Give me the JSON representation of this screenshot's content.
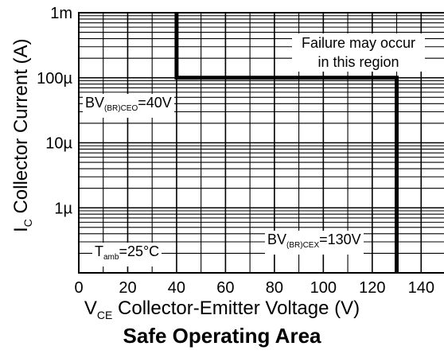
{
  "chart_data": {
    "type": "line",
    "title": "Safe Operating Area",
    "xlabel": {
      "symbol": "V",
      "sub": "CE",
      "text": " Collector-Emitter Voltage (V)"
    },
    "ylabel": {
      "symbol": "I",
      "sub": "C",
      "text": " Collector Current (A)"
    },
    "x_scale": "linear",
    "y_scale": "log",
    "xlim": [
      0,
      150
    ],
    "ylim": [
      1e-07,
      0.001
    ],
    "x_ticks": [
      0,
      20,
      40,
      60,
      80,
      100,
      120,
      140
    ],
    "x_tick_labels": [
      "0",
      "20",
      "40",
      "60",
      "80",
      "100",
      "120",
      "140"
    ],
    "y_ticks": [
      1e-06,
      1e-05,
      0.0001,
      0.001
    ],
    "y_tick_labels": [
      "1µ",
      "10µ",
      "100µ",
      "1m"
    ],
    "grid": true,
    "series": [
      {
        "x": [
          40,
          40,
          130,
          130
        ],
        "y": [
          0.001,
          0.0001,
          0.0001,
          1e-07
        ],
        "color": "#000000"
      }
    ],
    "annotations": {
      "failure": {
        "line1": "Failure may occur",
        "line2": "in this region"
      },
      "bvceo": {
        "prefix": "BV",
        "sub": "(BR)CEO",
        "value": "=40V"
      },
      "bvcex": {
        "prefix": "BV",
        "sub": "(BR)CEX",
        "value": "=130V"
      },
      "tamb": {
        "prefix": "T",
        "sub": "amb",
        "value": "=25°C"
      }
    }
  }
}
